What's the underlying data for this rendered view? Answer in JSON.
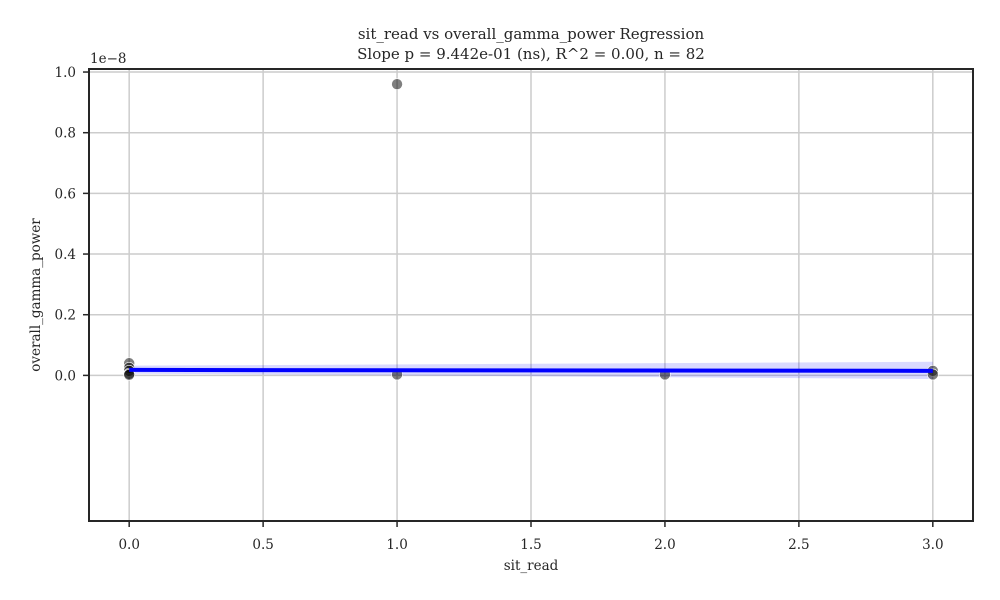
{
  "chart_data": {
    "type": "scatter",
    "title": "sit_read vs overall_gamma_power Regression",
    "subtitle": "Slope p = 9.442e-01 (ns), R^2 = 0.00, n = 82",
    "xlabel": "sit_read",
    "ylabel": "overall_gamma_power",
    "y_offset_label": "1e−8",
    "xlim": [
      -0.15,
      3.15
    ],
    "ylim": [
      -0.48,
      1.01
    ],
    "x_ticks": [
      0.0,
      0.5,
      1.0,
      1.5,
      2.0,
      2.5,
      3.0
    ],
    "x_tick_labels": [
      "0.0",
      "0.5",
      "1.0",
      "1.5",
      "2.0",
      "2.5",
      "3.0"
    ],
    "y_ticks": [
      0.0,
      0.2,
      0.4,
      0.6,
      0.8,
      1.0
    ],
    "y_tick_labels": [
      "0.0",
      "0.2",
      "0.4",
      "0.6",
      "0.8",
      "1.0"
    ],
    "grid": true,
    "series": [
      {
        "points": [
          {
            "x": 0.0,
            "y": 0.04
          },
          {
            "x": 0.0,
            "y": 0.025
          },
          {
            "x": 0.0,
            "y": 0.015
          },
          {
            "x": 0.0,
            "y": 0.005
          },
          {
            "x": 0.0,
            "y": 0.002
          },
          {
            "x": 1.0,
            "y": 0.96
          },
          {
            "x": 1.0,
            "y": 0.003
          },
          {
            "x": 2.0,
            "y": 0.003
          },
          {
            "x": 3.0,
            "y": 0.015
          },
          {
            "x": 3.0,
            "y": 0.003
          }
        ]
      }
    ],
    "regression_line": {
      "x": [
        0.0,
        3.0
      ],
      "y": [
        0.018,
        0.015
      ]
    },
    "confidence_band": {
      "x": [
        0.0,
        3.0
      ],
      "upper": [
        0.032,
        0.045
      ],
      "lower": [
        0.006,
        -0.012
      ]
    },
    "colors": {
      "points": "#000000",
      "line": "#0000ff",
      "band": "#0000ff",
      "grid": "#cccccc",
      "axis": "#262626"
    }
  }
}
